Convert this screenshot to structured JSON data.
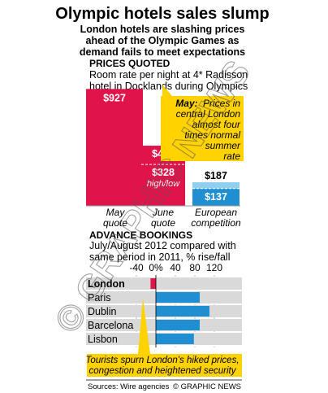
{
  "header": {
    "title": "Olympic hotels sales slump",
    "subtitle_lines": [
      "London hotels are slashing prices",
      "ahead of the Olympic Games as",
      "demand fails to meet expectations"
    ]
  },
  "prices": {
    "section_title": "PRICES QUOTED",
    "description_lines": [
      "Room rate per night at 4* Radisson",
      "hotel in Docklands during Olympics"
    ],
    "callout_label": "May:",
    "callout_lines": [
      "Prices in",
      "central London",
      "almost four",
      "times normal",
      "summer",
      "rate"
    ],
    "high_low_label": "high/low"
  },
  "bookings": {
    "section_title": "ADVANCE BOOKINGS",
    "description_lines": [
      "July/August 2012 compared with",
      "same period in 2011, % rise/fall"
    ],
    "callout_lines": [
      "Tourists spurn London's hiked prices,",
      "congestion and heightened security"
    ]
  },
  "footer": {
    "source": "Sources: Wire agencies",
    "credit": "© GRAPHIC NEWS"
  },
  "watermark": "© GRAPHIC NEWS",
  "colors": {
    "red": "#e0144a",
    "blue": "#1f8fd1",
    "light_blue": "#8fd0f0",
    "callout_yellow": "#ffd200",
    "bar_grey": "#d9d9d9"
  },
  "chart_data": [
    {
      "type": "bar",
      "title": "PRICES QUOTED",
      "ylabel": "Room rate per night at 4* Radisson hotel in Docklands during Olympics",
      "ylim": [
        0,
        1000
      ],
      "categories": [
        "May quote",
        "June quote",
        "European competition"
      ],
      "bars": [
        {
          "category": "May quote",
          "value": 927,
          "label": "$927"
        },
        {
          "category": "June quote",
          "high": 477,
          "low": 328,
          "high_label": "$477",
          "low_label": "$328"
        },
        {
          "category": "European competition",
          "high": 187,
          "low": 137,
          "high_label": "$187",
          "low_label": "$137"
        }
      ],
      "category_lines": [
        [
          "May",
          "quote"
        ],
        [
          "June",
          "quote"
        ],
        [
          "European",
          "competition"
        ]
      ]
    },
    {
      "type": "bar",
      "orientation": "horizontal",
      "title": "ADVANCE BOOKINGS",
      "xlabel": "% rise/fall",
      "xlim": [
        -40,
        120
      ],
      "xticks": [
        -40,
        0,
        40,
        80,
        120
      ],
      "xtick_labels": [
        "-40",
        "0%",
        "40",
        "80",
        "120"
      ],
      "categories": [
        "London",
        "Paris",
        "Dublin",
        "Barcelona",
        "Lisbon"
      ],
      "values": [
        -11,
        90,
        110,
        90,
        78
      ]
    }
  ]
}
